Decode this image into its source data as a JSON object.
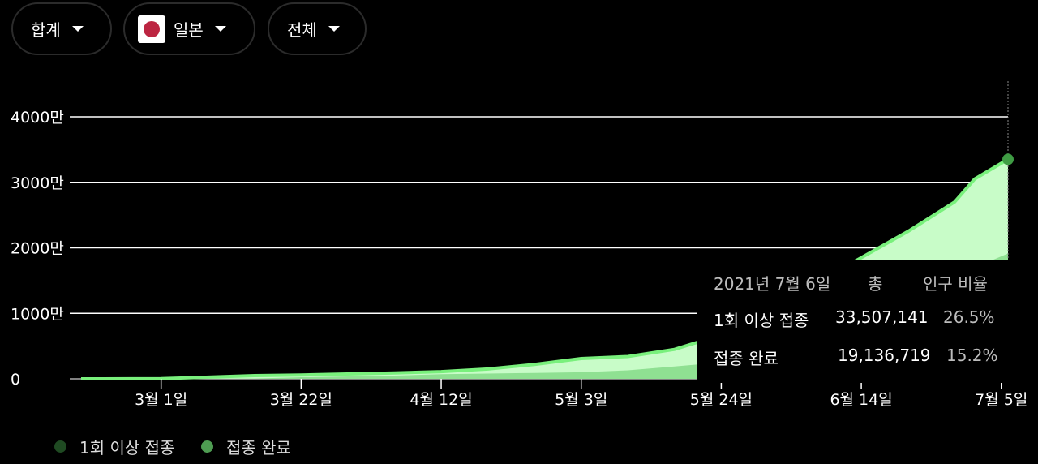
{
  "filters": {
    "measure": {
      "label": "합계"
    },
    "country": {
      "label": "일본"
    },
    "scope": {
      "label": "전체"
    }
  },
  "colors": {
    "background": "#000000",
    "first_dose_fill": "#c8fcc8",
    "first_dose_line": "#79f07c",
    "complete_fill": "#8fe092",
    "marker": "#3f9c44",
    "legend_first": "#1f4a22",
    "legend_complete": "#4e9c52"
  },
  "chart_data": {
    "type": "area",
    "y_axis": {
      "ticks": [
        0,
        10000000,
        20000000,
        30000000,
        40000000
      ],
      "tick_labels": [
        "0",
        "1000만",
        "2000만",
        "3000만",
        "4000만"
      ],
      "range": [
        0,
        45000000
      ],
      "grid": true
    },
    "x_axis": {
      "range": [
        "2021-02-17",
        "2021-07-06"
      ],
      "tick_dates": [
        "2021-03-01",
        "2021-03-22",
        "2021-04-12",
        "2021-05-03",
        "2021-05-24",
        "2021-06-14",
        "2021-07-05"
      ],
      "tick_labels": [
        "3월 1일",
        "3월 22일",
        "4월 12일",
        "5월 3일",
        "5월 24일",
        "6월 14일",
        "7월 5일"
      ]
    },
    "series": [
      {
        "name": "1회 이상 접종",
        "points": [
          [
            "2021-02-17",
            0
          ],
          [
            "2021-03-01",
            20000
          ],
          [
            "2021-03-15",
            500000
          ],
          [
            "2021-03-22",
            600000
          ],
          [
            "2021-04-05",
            900000
          ],
          [
            "2021-04-12",
            1100000
          ],
          [
            "2021-04-19",
            1500000
          ],
          [
            "2021-04-26",
            2200000
          ],
          [
            "2021-05-03",
            3100000
          ],
          [
            "2021-05-10",
            3400000
          ],
          [
            "2021-05-17",
            4500000
          ],
          [
            "2021-05-24",
            6700000
          ],
          [
            "2021-05-31",
            10500000
          ],
          [
            "2021-06-07",
            14500000
          ],
          [
            "2021-06-14",
            18500000
          ],
          [
            "2021-06-21",
            22500000
          ],
          [
            "2021-06-28",
            27000000
          ],
          [
            "2021-07-01",
            30500000
          ],
          [
            "2021-07-06",
            33507141
          ]
        ]
      },
      {
        "name": "접종 완료",
        "points": [
          [
            "2021-02-17",
            0
          ],
          [
            "2021-03-01",
            0
          ],
          [
            "2021-03-15",
            50000
          ],
          [
            "2021-03-22",
            250000
          ],
          [
            "2021-04-05",
            500000
          ],
          [
            "2021-04-12",
            700000
          ],
          [
            "2021-04-19",
            800000
          ],
          [
            "2021-04-26",
            900000
          ],
          [
            "2021-05-03",
            1000000
          ],
          [
            "2021-05-10",
            1300000
          ],
          [
            "2021-05-17",
            1900000
          ],
          [
            "2021-05-24",
            2500000
          ],
          [
            "2021-05-31",
            4500000
          ],
          [
            "2021-06-07",
            7000000
          ],
          [
            "2021-06-14",
            9500000
          ],
          [
            "2021-06-21",
            12000000
          ],
          [
            "2021-06-28",
            15500000
          ],
          [
            "2021-07-01",
            17000000
          ],
          [
            "2021-07-06",
            19136719
          ]
        ]
      }
    ],
    "tooltip": {
      "date": "2021년 7월 6일",
      "col_total": "총",
      "col_ratio": "인구 비율",
      "rows": [
        {
          "label": "1회 이상 접종",
          "total": "33,507,141",
          "ratio": "26.5%"
        },
        {
          "label": "접종 완료",
          "total": "19,136,719",
          "ratio": "15.2%"
        }
      ]
    },
    "legend_placement": "bottom-left"
  },
  "legend": {
    "items": [
      {
        "label": "1회 이상 접종"
      },
      {
        "label": "접종 완료"
      }
    ]
  }
}
